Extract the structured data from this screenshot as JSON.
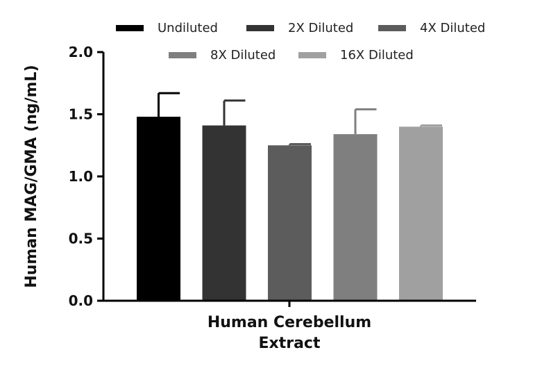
{
  "chart_data": {
    "type": "bar",
    "title": "",
    "xlabel_lines": [
      "Human Cerebellum",
      "Extract"
    ],
    "ylabel": "Human MAG/GMA (ng/mL)",
    "ylim": [
      0,
      2.0
    ],
    "yticks": [
      "0.0",
      "0.5",
      "1.0",
      "1.5",
      "2.0"
    ],
    "ytick_values": [
      0,
      0.5,
      1.0,
      1.5,
      2.0
    ],
    "categories": [
      "Human Cerebellum Extract"
    ],
    "series": [
      {
        "name": "Undiluted",
        "values": [
          1.48
        ],
        "error": [
          0.19
        ],
        "color": "#000000"
      },
      {
        "name": "2X Diluted",
        "values": [
          1.41
        ],
        "error": [
          0.2
        ],
        "color": "#333333"
      },
      {
        "name": "4X Diluted",
        "values": [
          1.25
        ],
        "error": [
          0.01
        ],
        "color": "#5c5c5c"
      },
      {
        "name": "8X Diluted",
        "values": [
          1.34
        ],
        "error": [
          0.2
        ],
        "color": "#7f7f7f"
      },
      {
        "name": "16X Diluted",
        "values": [
          1.4
        ],
        "error": [
          0.01
        ],
        "color": "#a0a0a0"
      }
    ],
    "legend_position": "top"
  }
}
